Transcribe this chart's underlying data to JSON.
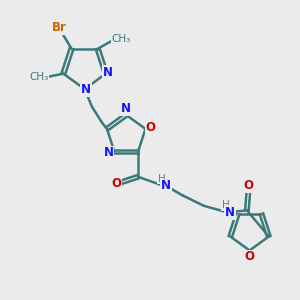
{
  "bg_color": "#ebebeb",
  "bond_color": "#3a7a7a",
  "bond_width": 1.8,
  "atom_colors": {
    "N": "#1414ff",
    "O": "#cc0000",
    "Br": "#cc6600",
    "C": "#3a7a7a",
    "H": "#5a8a8a"
  },
  "font_size_atom": 8.5,
  "font_size_small": 7.5
}
